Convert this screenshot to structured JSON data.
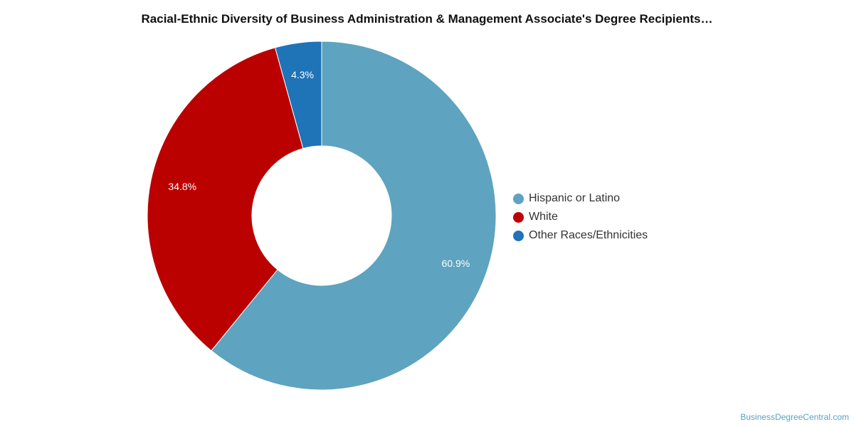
{
  "chart_data": {
    "type": "pie",
    "title": "Racial-Ethnic Diversity of Business Administration & Management Associate's Degree Recipients…",
    "categories": [
      "Hispanic or Latino",
      "White",
      "Other Races/Ethnicities"
    ],
    "values": [
      60.9,
      34.8,
      4.3
    ],
    "value_labels": [
      "60.9%",
      "34.8%",
      "4.3%"
    ],
    "colors": [
      "#5ea3bf",
      "#bb0000",
      "#1f73b7"
    ],
    "donut": true,
    "legend_position": "right"
  },
  "watermark": "BusinessDegreeCentral.com"
}
